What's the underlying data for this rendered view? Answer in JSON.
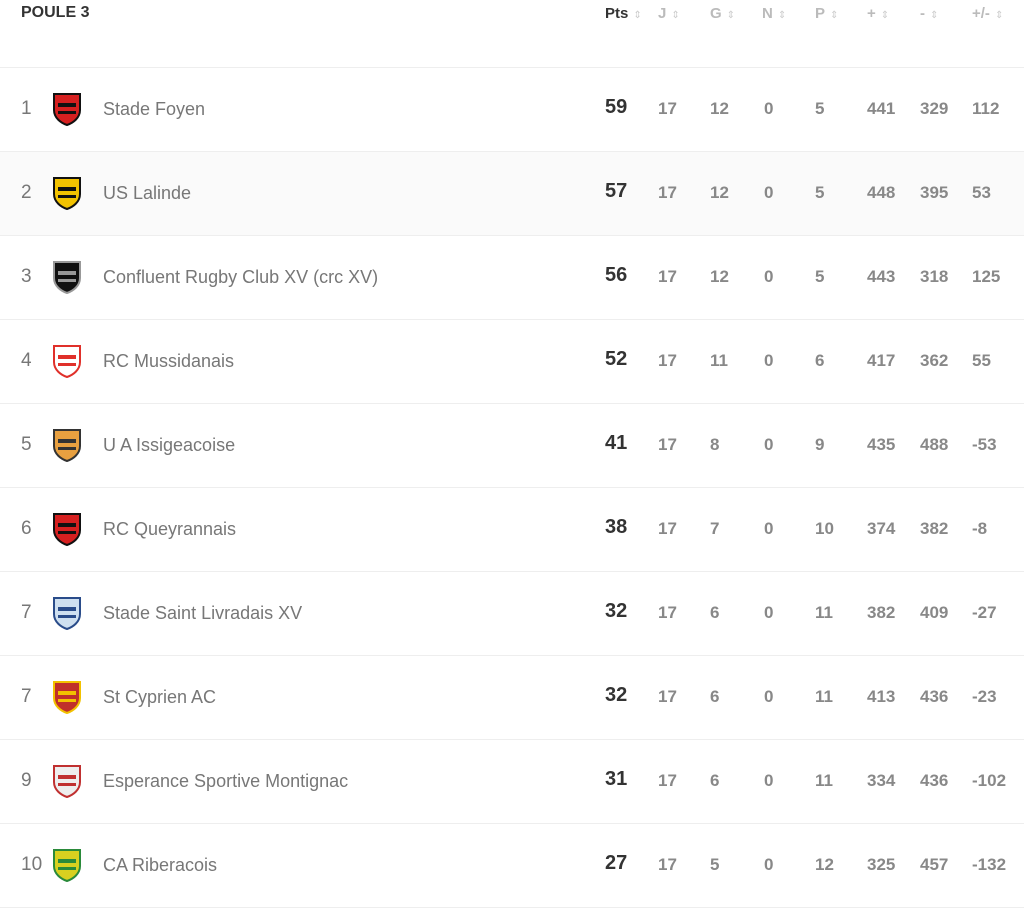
{
  "title": "POULE 3",
  "columns": [
    "Pts",
    "J",
    "G",
    "N",
    "P",
    "+",
    "-",
    "+/-"
  ],
  "rows": [
    {
      "rank": "1",
      "team": "Stade Foyen",
      "stats": [
        "59",
        "17",
        "12",
        "0",
        "5",
        "441",
        "329",
        "112"
      ],
      "logo": [
        "#d62020",
        "#111"
      ]
    },
    {
      "rank": "2",
      "team": "US Lalinde",
      "stats": [
        "57",
        "17",
        "12",
        "0",
        "5",
        "448",
        "395",
        "53"
      ],
      "logo": [
        "#f2c200",
        "#111"
      ]
    },
    {
      "rank": "3",
      "team": "Confluent Rugby Club XV (crc XV)",
      "stats": [
        "56",
        "17",
        "12",
        "0",
        "5",
        "443",
        "318",
        "125"
      ],
      "logo": [
        "#111",
        "#999"
      ]
    },
    {
      "rank": "4",
      "team": "RC Mussidanais",
      "stats": [
        "52",
        "17",
        "11",
        "0",
        "6",
        "417",
        "362",
        "55"
      ],
      "logo": [
        "#fff",
        "#e0302a"
      ]
    },
    {
      "rank": "5",
      "team": "U A Issigeacoise",
      "stats": [
        "41",
        "17",
        "8",
        "0",
        "9",
        "435",
        "488",
        "-53"
      ],
      "logo": [
        "#e8a040",
        "#333"
      ]
    },
    {
      "rank": "6",
      "team": "RC Queyrannais",
      "stats": [
        "38",
        "17",
        "7",
        "0",
        "10",
        "374",
        "382",
        "-8"
      ],
      "logo": [
        "#d62020",
        "#111"
      ]
    },
    {
      "rank": "7",
      "team": "Stade Saint Livradais XV",
      "stats": [
        "32",
        "17",
        "6",
        "0",
        "11",
        "382",
        "409",
        "-27"
      ],
      "logo": [
        "#cfe0f0",
        "#2a4c8a"
      ]
    },
    {
      "rank": "7",
      "team": "St Cyprien AC",
      "stats": [
        "32",
        "17",
        "6",
        "0",
        "11",
        "413",
        "436",
        "-23"
      ],
      "logo": [
        "#c0302a",
        "#f2c200"
      ]
    },
    {
      "rank": "9",
      "team": "Esperance Sportive Montignac",
      "stats": [
        "31",
        "17",
        "6",
        "0",
        "11",
        "334",
        "436",
        "-102"
      ],
      "logo": [
        "#eee",
        "#c03030"
      ]
    },
    {
      "rank": "10",
      "team": "CA Riberacois",
      "stats": [
        "27",
        "17",
        "5",
        "0",
        "12",
        "325",
        "457",
        "-132"
      ],
      "logo": [
        "#d8d020",
        "#2a8a3a"
      ]
    }
  ]
}
